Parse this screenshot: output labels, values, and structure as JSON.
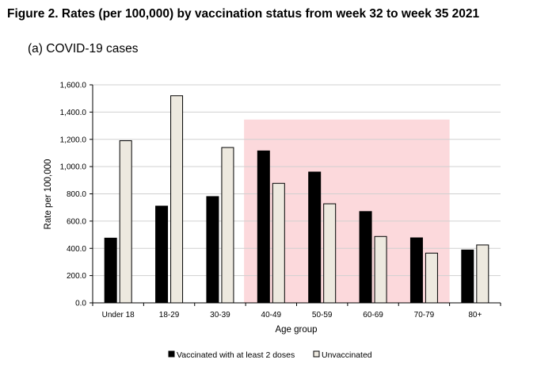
{
  "figure": {
    "title": "Figure 2. Rates (per 100,000) by vaccination status from week 32 to week 35 2021",
    "subtitle": "(a) COVID-19 cases"
  },
  "chart_data": {
    "type": "bar",
    "categories": [
      "Under 18",
      "18-29",
      "30-39",
      "40-49",
      "50-59",
      "60-69",
      "70-79",
      "80+"
    ],
    "series": [
      {
        "name": "Vaccinated with at least 2 doses",
        "values": [
          475,
          710,
          780,
          1115,
          960,
          670,
          477,
          388
        ],
        "color": "#000000"
      },
      {
        "name": "Unvaccinated",
        "values": [
          1190,
          1520,
          1140,
          877,
          727,
          487,
          365,
          425
        ],
        "color": "#ede9df"
      }
    ],
    "xlabel": "Age group",
    "ylabel": "Rate per 100,000",
    "ylim": [
      0,
      1600
    ],
    "yticks": [
      0,
      200,
      400,
      600,
      800,
      1000,
      1200,
      1400,
      1600
    ],
    "ytick_labels": [
      "0.0",
      "200.0",
      "400.0",
      "600.0",
      "800.0",
      "1,000.0",
      "1,200.0",
      "1,400.0",
      "1,600.0"
    ],
    "grid": true,
    "legend_position": "bottom",
    "highlight": {
      "from_category": "40-49",
      "to_category": "70-79",
      "top_value": 1345,
      "color": "#fcd9dc"
    }
  }
}
